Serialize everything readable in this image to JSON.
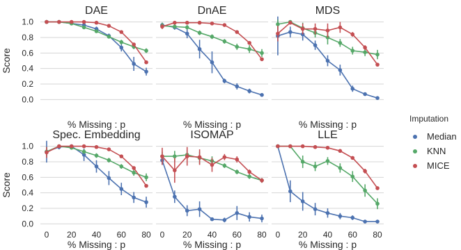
{
  "chart_data": {
    "type": "line",
    "x": [
      0,
      10,
      20,
      30,
      40,
      50,
      60,
      70,
      80
    ],
    "xticks": [
      0,
      20,
      40,
      60,
      80
    ],
    "yticks": [
      0.0,
      0.2,
      0.4,
      0.6,
      0.8,
      1.0
    ],
    "ytick_labels": [
      "0.0",
      "0.2",
      "0.4",
      "0.6",
      "0.8",
      "1.0"
    ],
    "xlim": [
      -5,
      85
    ],
    "ylim": [
      -0.05,
      1.05
    ],
    "xlabel": "% Missing : p",
    "ylabel": "Score",
    "grid": "horizontal",
    "legend": {
      "title": "Imputation",
      "placement": "right",
      "entries": [
        {
          "name": "Median",
          "color": "#4c72b0"
        },
        {
          "name": "KNN",
          "color": "#55a868"
        },
        {
          "name": "MICE",
          "color": "#c44e52"
        }
      ]
    },
    "panels": [
      {
        "title": "DAE",
        "series": [
          {
            "name": "Median",
            "values": [
              1.0,
              1.0,
              0.98,
              0.96,
              0.91,
              0.82,
              0.67,
              0.46,
              0.36
            ],
            "err": [
              0.01,
              0.01,
              0.02,
              0.02,
              0.03,
              0.03,
              0.05,
              0.09,
              0.05
            ]
          },
          {
            "name": "KNN",
            "values": [
              1.0,
              1.0,
              0.98,
              0.93,
              0.88,
              0.81,
              0.74,
              0.68,
              0.63
            ],
            "err": [
              0.01,
              0.01,
              0.01,
              0.02,
              0.02,
              0.02,
              0.03,
              0.03,
              0.03
            ]
          },
          {
            "name": "MICE",
            "values": [
              1.0,
              1.0,
              1.0,
              1.0,
              0.99,
              0.95,
              0.87,
              0.71,
              0.48
            ],
            "err": [
              0.01,
              0.01,
              0.01,
              0.01,
              0.01,
              0.01,
              0.01,
              0.02,
              0.02
            ]
          }
        ]
      },
      {
        "title": "DnAE",
        "series": [
          {
            "name": "Median",
            "values": [
              0.96,
              0.93,
              0.85,
              0.65,
              0.48,
              0.24,
              0.17,
              0.11,
              0.06
            ],
            "err": [
              0.03,
              0.03,
              0.06,
              0.12,
              0.14,
              0.03,
              0.04,
              0.03,
              0.02
            ]
          },
          {
            "name": "KNN",
            "values": [
              0.95,
              0.94,
              0.93,
              0.86,
              0.81,
              0.75,
              0.68,
              0.65,
              0.6
            ],
            "err": [
              0.04,
              0.03,
              0.03,
              0.03,
              0.03,
              0.03,
              0.04,
              0.05,
              0.05
            ]
          },
          {
            "name": "MICE",
            "values": [
              0.94,
              0.99,
              0.99,
              0.99,
              0.98,
              0.96,
              0.87,
              0.73,
              0.52
            ],
            "err": [
              0.03,
              0.01,
              0.01,
              0.01,
              0.01,
              0.01,
              0.01,
              0.01,
              0.01
            ]
          }
        ]
      },
      {
        "title": "MDS",
        "series": [
          {
            "name": "Median",
            "values": [
              0.82,
              0.87,
              0.84,
              0.7,
              0.5,
              0.38,
              0.14,
              0.07,
              0.02
            ],
            "err": [
              0.25,
              0.07,
              0.08,
              0.06,
              0.07,
              0.07,
              0.04,
              0.02,
              0.01
            ]
          },
          {
            "name": "KNN",
            "values": [
              0.97,
              1.0,
              0.92,
              0.86,
              0.8,
              0.73,
              0.63,
              0.61,
              0.58
            ],
            "err": [
              0.06,
              0.01,
              0.07,
              0.06,
              0.09,
              0.05,
              0.05,
              0.05,
              0.06
            ]
          },
          {
            "name": "MICE",
            "values": [
              0.85,
              0.99,
              0.91,
              0.91,
              0.89,
              0.93,
              0.84,
              0.67,
              0.45
            ],
            "err": [
              0.1,
              0.02,
              0.07,
              0.07,
              0.09,
              0.07,
              0.03,
              0.03,
              0.02
            ]
          }
        ]
      },
      {
        "title": "Spec. Embedding",
        "series": [
          {
            "name": "Median",
            "values": [
              0.93,
              0.99,
              1.0,
              0.89,
              0.74,
              0.59,
              0.45,
              0.34,
              0.28
            ],
            "err": [
              0.14,
              0.03,
              0.01,
              0.08,
              0.08,
              0.09,
              0.08,
              0.07,
              0.07
            ]
          },
          {
            "name": "KNN",
            "values": [
              0.93,
              1.0,
              0.98,
              0.93,
              0.88,
              0.82,
              0.74,
              0.66,
              0.6
            ],
            "err": [
              0.06,
              0.01,
              0.02,
              0.03,
              0.03,
              0.03,
              0.03,
              0.04,
              0.05
            ]
          },
          {
            "name": "MICE",
            "values": [
              0.92,
              1.0,
              1.0,
              1.0,
              0.99,
              0.96,
              0.87,
              0.72,
              0.49
            ],
            "err": [
              0.07,
              0.01,
              0.01,
              0.01,
              0.01,
              0.01,
              0.01,
              0.02,
              0.02
            ]
          }
        ]
      },
      {
        "title": "ISOMAP",
        "series": [
          {
            "name": "Median",
            "values": [
              0.82,
              0.35,
              0.17,
              0.19,
              0.06,
              0.05,
              0.14,
              0.09,
              0.07
            ],
            "err": [
              0.06,
              0.08,
              0.07,
              0.1,
              0.02,
              0.03,
              0.09,
              0.06,
              0.05
            ]
          },
          {
            "name": "KNN",
            "values": [
              0.87,
              0.87,
              0.89,
              0.85,
              0.81,
              0.75,
              0.67,
              0.61,
              0.56
            ],
            "err": [
              0.06,
              0.07,
              0.06,
              0.08,
              0.06,
              0.03,
              0.03,
              0.03,
              0.03
            ]
          },
          {
            "name": "MICE",
            "values": [
              0.87,
              0.69,
              0.87,
              0.86,
              0.76,
              0.86,
              0.83,
              0.67,
              0.56
            ],
            "err": [
              0.11,
              0.16,
              0.12,
              0.1,
              0.09,
              0.04,
              0.04,
              0.03,
              0.03
            ]
          }
        ]
      },
      {
        "title": "LLE",
        "series": [
          {
            "name": "Median",
            "values": [
              1.0,
              0.42,
              0.29,
              0.19,
              0.14,
              0.1,
              0.08,
              0.03,
              0.03
            ],
            "err": [
              0.01,
              0.14,
              0.12,
              0.08,
              0.06,
              0.04,
              0.03,
              0.02,
              0.01
            ]
          },
          {
            "name": "KNN",
            "values": [
              1.0,
              1.0,
              0.8,
              0.74,
              0.81,
              0.72,
              0.61,
              0.43,
              0.26
            ],
            "err": [
              0.01,
              0.01,
              0.08,
              0.06,
              0.05,
              0.06,
              0.07,
              0.08,
              0.07
            ]
          },
          {
            "name": "MICE",
            "values": [
              1.0,
              1.0,
              1.0,
              0.99,
              0.98,
              0.94,
              0.85,
              0.68,
              0.46
            ],
            "err": [
              0.01,
              0.01,
              0.01,
              0.01,
              0.01,
              0.02,
              0.02,
              0.03,
              0.02
            ]
          }
        ]
      }
    ]
  }
}
